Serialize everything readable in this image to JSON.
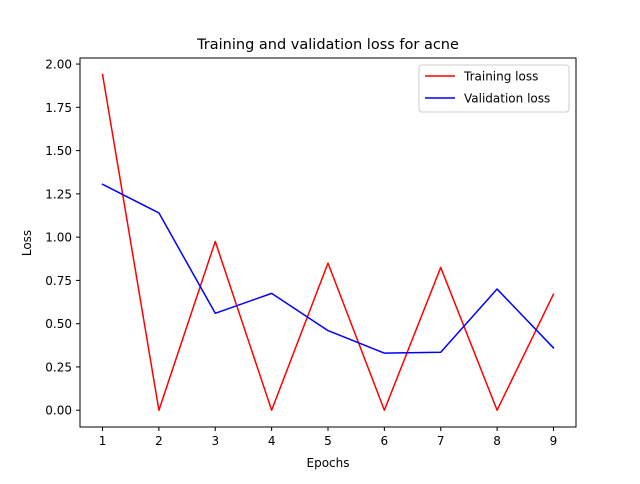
{
  "chart_data": {
    "type": "line",
    "title": "Training and validation loss for acne",
    "xlabel": "Epochs",
    "ylabel": "Loss",
    "x": [
      1,
      2,
      3,
      4,
      5,
      6,
      7,
      8,
      9
    ],
    "xticks": [
      "1",
      "2",
      "3",
      "4",
      "5",
      "6",
      "7",
      "8",
      "9"
    ],
    "yticks": [
      "0.00",
      "0.25",
      "0.50",
      "0.75",
      "1.00",
      "1.25",
      "1.50",
      "1.75",
      "2.00"
    ],
    "ytick_values": [
      0,
      0.25,
      0.5,
      0.75,
      1.0,
      1.25,
      1.5,
      1.75,
      2.0
    ],
    "xlim": [
      0.6,
      9.4
    ],
    "ylim": [
      -0.097,
      2.035
    ],
    "grid": false,
    "legend_position": "top-right",
    "series": [
      {
        "name": "Training loss",
        "color": "#ff0000",
        "values": [
          1.94,
          0.0,
          0.975,
          0.0,
          0.85,
          0.0,
          0.825,
          0.0,
          0.67
        ]
      },
      {
        "name": "Validation loss",
        "color": "#0000ff",
        "values": [
          1.305,
          1.14,
          0.56,
          0.675,
          0.46,
          0.33,
          0.335,
          0.7,
          0.36
        ]
      }
    ]
  }
}
